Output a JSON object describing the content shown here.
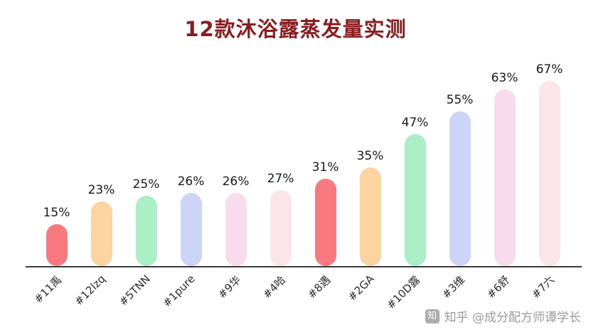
{
  "chart_data": {
    "type": "bar",
    "title": "12款沐浴露蒸发量实测",
    "categories": [
      "#11禹",
      "#12lzq",
      "#5TNN",
      "#1pure",
      "#9华",
      "#4哈",
      "#8遇",
      "#2GA",
      "#10D露",
      "#3维",
      "#6舒",
      "#7六"
    ],
    "values": [
      15,
      23,
      25,
      26,
      26,
      27,
      31,
      35,
      47,
      55,
      63,
      67
    ],
    "value_labels": [
      "15%",
      "23%",
      "25%",
      "26%",
      "26%",
      "27%",
      "31%",
      "35%",
      "47%",
      "55%",
      "63%",
      "67%"
    ],
    "bar_colors": [
      "#f8797f",
      "#fbd4a1",
      "#aaefc5",
      "#ccd4f8",
      "#f9dbee",
      "#fbe5ea",
      "#f8797f",
      "#fbd4a1",
      "#aaefc5",
      "#ccd4f8",
      "#f9dbee",
      "#fbe5ea"
    ],
    "xlabel": "",
    "ylabel": "",
    "ylim": [
      0,
      70
    ],
    "grid": false,
    "legend": "none",
    "x_label_rotation_deg": -45
  },
  "colors": {
    "title": "#8b1d20",
    "axis": "#3a3a3a",
    "value_label": "#17171f",
    "category_label": "#2b2b2b",
    "watermark": "#9a9a9a"
  },
  "watermark": {
    "icon": "知",
    "text": "知乎 @成分配方师谭学长"
  }
}
